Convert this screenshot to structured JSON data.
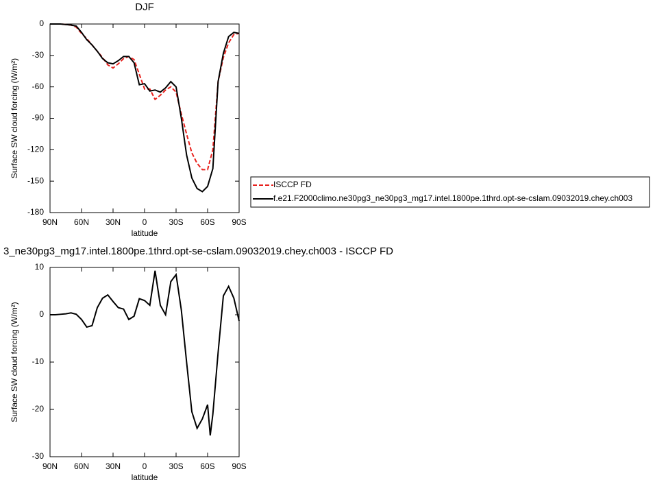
{
  "chart_data": [
    {
      "type": "line",
      "title": "DJF",
      "xlabel": "latitude",
      "ylabel": "Surface SW cloud forcing (W/m²)",
      "x": [
        90,
        85,
        80,
        75,
        70,
        65,
        60,
        55,
        50,
        45,
        40,
        35,
        30,
        25,
        20,
        15,
        10,
        5,
        0,
        -5,
        -10,
        -15,
        -20,
        -25,
        -30,
        -35,
        -40,
        -45,
        -50,
        -55,
        -60,
        -65,
        -70,
        -75,
        -80,
        -85,
        -90
      ],
      "series": [
        {
          "name": "ISCCP FD",
          "color": "#e8201c",
          "linestyle": "dashed",
          "values": [
            0,
            0,
            0,
            -0.5,
            -1,
            -3,
            -9,
            -14,
            -20,
            -26,
            -32,
            -39,
            -42,
            -38,
            -33,
            -31,
            -34,
            -48,
            -62,
            -62,
            -72,
            -68,
            -63,
            -60,
            -65,
            -86,
            -105,
            -123,
            -133,
            -139,
            -139,
            -120,
            -55,
            -32,
            -18,
            -10,
            -9
          ]
        },
        {
          "name": "f.e21.F2000climo.ne30pg3_ne30pg3_mg17.intel.1800pe.1thrd.opt-se-cslam.09032019.chey.ch003",
          "color": "#000000",
          "linestyle": "solid",
          "values": [
            0,
            0,
            0,
            -0.5,
            -1,
            -2,
            -8,
            -15,
            -20,
            -26,
            -33,
            -37,
            -38,
            -35,
            -31,
            -31,
            -37,
            -58,
            -57,
            -64,
            -63,
            -65,
            -61,
            -55,
            -60,
            -90,
            -125,
            -147,
            -157,
            -160,
            -155,
            -138,
            -55,
            -28,
            -12,
            -8,
            -9
          ]
        }
      ],
      "xlim": [
        90,
        -90
      ],
      "ylim": [
        0,
        -180
      ],
      "xticks": [
        {
          "value": 90,
          "label": "90N"
        },
        {
          "value": 60,
          "label": "60N"
        },
        {
          "value": 30,
          "label": "30N"
        },
        0,
        {
          "value": -30,
          "label": "30S"
        },
        {
          "value": -60,
          "label": "60S"
        },
        {
          "value": -90,
          "label": "90S"
        }
      ],
      "yticks": [
        0,
        -30,
        -60,
        -90,
        -120,
        -150,
        -180
      ],
      "legend": "right"
    },
    {
      "type": "line",
      "title": "3_ne30pg3_mg17.intel.1800pe.1thrd.opt-se-cslam.09032019.chey.ch003 - ISCCP FD",
      "xlabel": "latitude",
      "ylabel": "Surface SW cloud forcing (W/m²)",
      "x": [
        90,
        85,
        80,
        75,
        70,
        65,
        60,
        55,
        50,
        45,
        40,
        35,
        30,
        25,
        20,
        15,
        10,
        5,
        0,
        -5,
        -10,
        -15,
        -20,
        -25,
        -30,
        -35,
        -40,
        -45,
        -50,
        -55,
        -60,
        -62.5,
        -65,
        -70,
        -75,
        -80,
        -85,
        -90
      ],
      "series": [
        {
          "color": "#000000",
          "linestyle": "solid",
          "values": [
            0,
            0,
            0.1,
            0.2,
            0.4,
            0.1,
            -1,
            -2.6,
            -2.3,
            1.5,
            3.5,
            4.2,
            2.8,
            1.5,
            1.2,
            -1,
            -0.3,
            3.4,
            3,
            2,
            9.3,
            2,
            0,
            7,
            8.5,
            1,
            -10,
            -20.5,
            -24,
            -22,
            -19,
            -25.5,
            -21,
            -8,
            4,
            6,
            3.5,
            -1.3
          ]
        }
      ],
      "xlim": [
        90,
        -90
      ],
      "ylim": [
        10,
        -30
      ],
      "xticks": [
        {
          "value": 90,
          "label": "90N"
        },
        {
          "value": 60,
          "label": "60N"
        },
        {
          "value": 30,
          "label": "30N"
        },
        0,
        {
          "value": -30,
          "label": "30S"
        },
        {
          "value": -60,
          "label": "60S"
        },
        {
          "value": -90,
          "label": "90S"
        }
      ],
      "yticks": [
        10,
        0,
        -10,
        -20,
        -30
      ]
    }
  ]
}
